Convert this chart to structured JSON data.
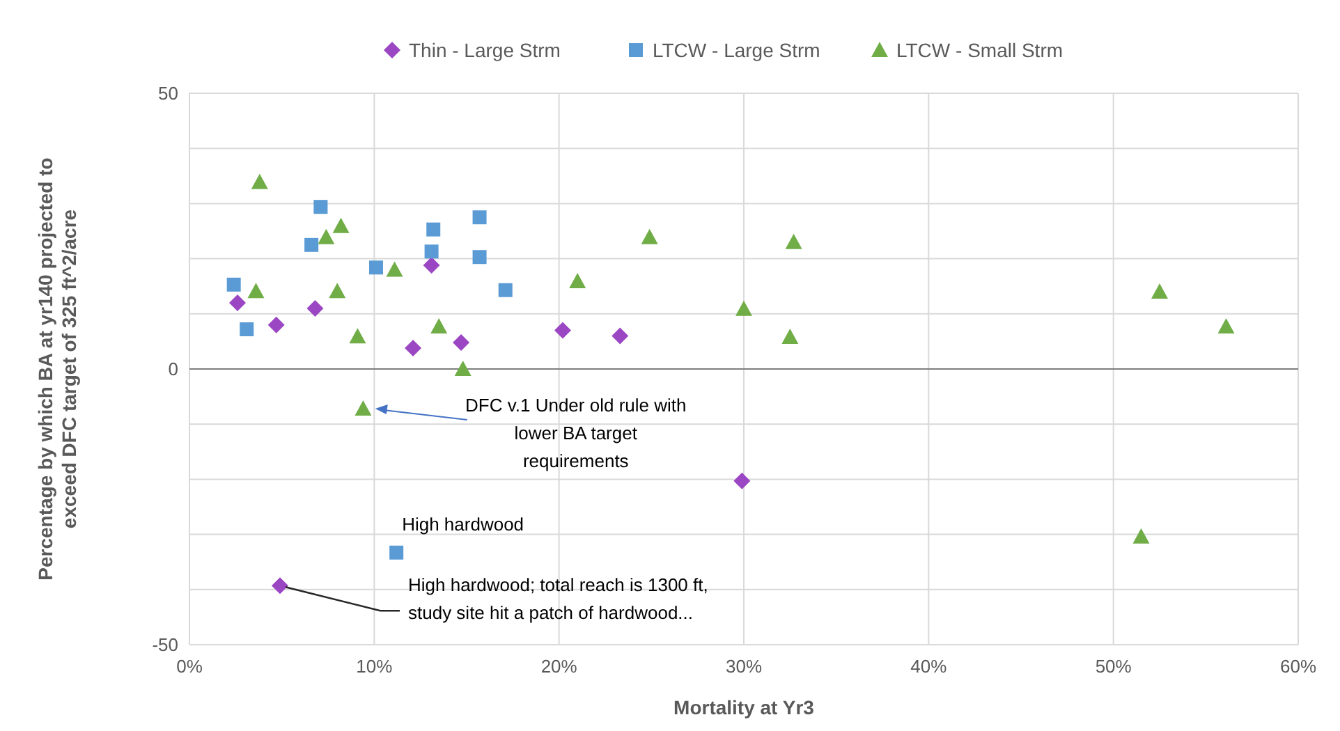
{
  "chart_data": {
    "type": "scatter",
    "xlabel": "Mortality at Yr3",
    "ylabel": "Percentage by which BA at yr140 projected to exceed DFC target of 325 ft^2/acre",
    "xlim": [
      0,
      60
    ],
    "xticks": [
      {
        "value": 0,
        "label": "0%"
      },
      {
        "value": 10,
        "label": "10%"
      },
      {
        "value": 20,
        "label": "20%"
      },
      {
        "value": 30,
        "label": "30%"
      },
      {
        "value": 40,
        "label": "40%"
      },
      {
        "value": 50,
        "label": "50%"
      },
      {
        "value": 60,
        "label": "60%"
      }
    ],
    "ylim": [
      -50,
      50
    ],
    "yticks": [
      {
        "value": -50,
        "label": "-50"
      },
      {
        "value": -40,
        "label": null
      },
      {
        "value": -30,
        "label": null
      },
      {
        "value": -20,
        "label": null
      },
      {
        "value": -10,
        "label": null
      },
      {
        "value": 0,
        "label": "0"
      },
      {
        "value": 10,
        "label": null
      },
      {
        "value": 20,
        "label": null
      },
      {
        "value": 30,
        "label": null
      },
      {
        "value": 40,
        "label": null
      },
      {
        "value": 50,
        "label": "50"
      }
    ],
    "grid": true,
    "legend": "top",
    "series": [
      {
        "name": "Thin - Large Strm",
        "color": "#9b46c2",
        "marker": "diamond",
        "x": [
          2.6,
          4.7,
          6.8,
          12.1,
          13.1,
          14.7,
          20.2,
          23.3,
          29.9,
          4.9
        ],
        "values": [
          12.0,
          8.0,
          11.0,
          3.8,
          18.8,
          4.8,
          7.0,
          6.0,
          -20.3,
          -39.3
        ]
      },
      {
        "name": "LTCW - Large Strm",
        "color": "#5b9bd5",
        "marker": "square",
        "x": [
          2.4,
          3.1,
          6.6,
          7.1,
          10.1,
          13.1,
          13.2,
          15.7,
          15.7,
          17.1,
          11.2
        ],
        "values": [
          15.3,
          7.2,
          22.5,
          29.4,
          18.4,
          21.3,
          25.3,
          27.5,
          20.3,
          14.3,
          -33.3
        ]
      },
      {
        "name": "LTCW - Small Strm",
        "color": "#70ad47",
        "marker": "triangle",
        "x": [
          3.6,
          3.8,
          7.4,
          8.0,
          8.2,
          9.1,
          9.4,
          11.1,
          13.5,
          14.8,
          21.0,
          24.9,
          30.0,
          32.5,
          32.7,
          51.5,
          52.5,
          56.1
        ],
        "values": [
          14.1,
          33.9,
          23.9,
          14.1,
          25.9,
          5.9,
          -7.2,
          18.0,
          7.7,
          0,
          15.9,
          23.9,
          10.9,
          5.8,
          23.0,
          -30.4,
          14.0,
          7.7
        ]
      }
    ],
    "annotations": [
      "DFC v.1 Under old rule with lower BA target requirements",
      {
        "text": "High hardwood",
        "x": 11.2,
        "y": -33.3
      },
      {
        "text": "High hardwood; total reach is 1300 ft, study site hit a patch of hardwood...",
        "x": 4.9,
        "y": -39.3
      }
    ]
  }
}
